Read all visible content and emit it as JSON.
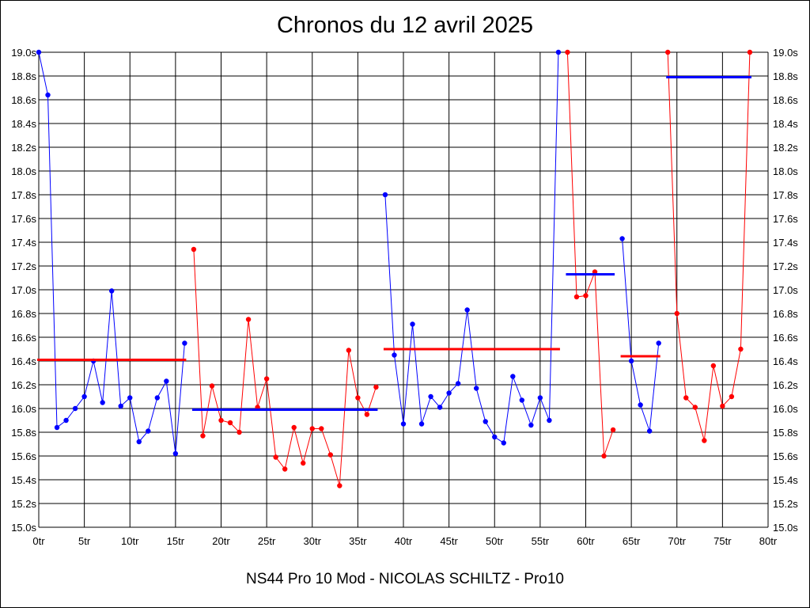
{
  "chart_data": {
    "type": "line",
    "title": "Chronos du 12 avril 2025",
    "caption": "NS44 Pro 10 Mod - NICOLAS SCHILTZ - Pro10",
    "xlim": [
      0,
      80
    ],
    "ylim": [
      15.0,
      19.0
    ],
    "grid": true,
    "x_ticks": [
      0,
      5,
      10,
      15,
      20,
      25,
      30,
      35,
      40,
      45,
      50,
      55,
      60,
      65,
      70,
      75,
      80
    ],
    "x_tick_labels": [
      "0tr",
      "5tr",
      "10tr",
      "15tr",
      "20tr",
      "25tr",
      "30tr",
      "35tr",
      "40tr",
      "45tr",
      "50tr",
      "55tr",
      "60tr",
      "65tr",
      "70tr",
      "75tr",
      "80tr"
    ],
    "y_ticks": [
      15.0,
      15.2,
      15.4,
      15.6,
      15.8,
      16.0,
      16.2,
      16.4,
      16.6,
      16.8,
      17.0,
      17.2,
      17.4,
      17.6,
      17.8,
      18.0,
      18.2,
      18.4,
      18.6,
      18.8,
      19.0
    ],
    "y_tick_labels": [
      "15.0s",
      "15.2s",
      "15.4s",
      "15.6s",
      "15.8s",
      "16.0s",
      "16.2s",
      "16.4s",
      "16.6s",
      "16.8s",
      "17.0s",
      "17.2s",
      "17.4s",
      "17.6s",
      "17.8s",
      "18.0s",
      "18.2s",
      "18.4s",
      "18.6s",
      "18.8s",
      "19.0s"
    ],
    "colors": {
      "blue": "#0000ff",
      "red": "#ff0000",
      "grid": "#000000"
    },
    "series": [
      {
        "color": "#0000ff",
        "x": [
          0,
          1,
          2,
          3,
          4,
          5,
          6,
          7,
          8,
          9,
          10,
          11,
          12,
          13,
          14,
          15,
          16
        ],
        "values": [
          19.0,
          18.64,
          15.84,
          15.9,
          16.0,
          16.1,
          16.4,
          16.05,
          16.99,
          16.02,
          16.09,
          15.72,
          15.81,
          16.09,
          16.23,
          15.62,
          16.55
        ]
      },
      {
        "color": "#ff0000",
        "x": [
          17,
          18,
          19,
          20,
          21,
          22,
          23,
          24,
          25,
          26,
          27,
          28,
          29,
          30,
          31,
          32,
          33,
          34,
          35,
          36,
          37
        ],
        "values": [
          17.34,
          15.77,
          16.19,
          15.9,
          15.88,
          15.8,
          16.75,
          16.01,
          16.25,
          15.59,
          15.49,
          15.84,
          15.54,
          15.83,
          15.83,
          15.61,
          15.35,
          16.49,
          16.09,
          15.95,
          16.18
        ]
      },
      {
        "color": "#0000ff",
        "x": [
          38,
          39,
          40,
          41,
          42,
          43,
          44,
          45,
          46,
          47,
          48,
          49,
          50,
          51,
          52,
          53,
          54,
          55,
          56,
          57
        ],
        "values": [
          17.8,
          16.45,
          15.87,
          16.71,
          15.87,
          16.1,
          16.01,
          16.13,
          16.21,
          16.83,
          16.17,
          15.89,
          15.76,
          15.71,
          16.27,
          16.07,
          15.86,
          16.09,
          15.9,
          19.0
        ]
      },
      {
        "color": "#ff0000",
        "x": [
          58,
          59,
          60,
          61,
          62,
          63
        ],
        "values": [
          19.0,
          16.94,
          16.95,
          17.15,
          15.6,
          15.82
        ]
      },
      {
        "color": "#0000ff",
        "x": [
          64,
          65,
          66,
          67,
          68
        ],
        "values": [
          17.43,
          16.4,
          16.03,
          15.81,
          16.55
        ]
      },
      {
        "color": "#ff0000",
        "x": [
          69,
          70,
          71,
          72,
          73,
          74,
          75,
          76,
          77,
          78
        ],
        "values": [
          19.0,
          16.8,
          16.09,
          16.01,
          15.73,
          16.36,
          16.02,
          16.1,
          16.5,
          19.0
        ]
      }
    ],
    "averages": [
      {
        "color": "#ff0000",
        "x1": 0,
        "x2": 16,
        "value": 16.41
      },
      {
        "color": "#0000ff",
        "x1": 17,
        "x2": 37,
        "value": 15.99
      },
      {
        "color": "#ff0000",
        "x1": 38,
        "x2": 57,
        "value": 16.5
      },
      {
        "color": "#0000ff",
        "x1": 58,
        "x2": 63,
        "value": 17.13
      },
      {
        "color": "#ff0000",
        "x1": 64,
        "x2": 68,
        "value": 16.44
      },
      {
        "color": "#0000ff",
        "x1": 69,
        "x2": 78,
        "value": 18.79
      }
    ]
  }
}
